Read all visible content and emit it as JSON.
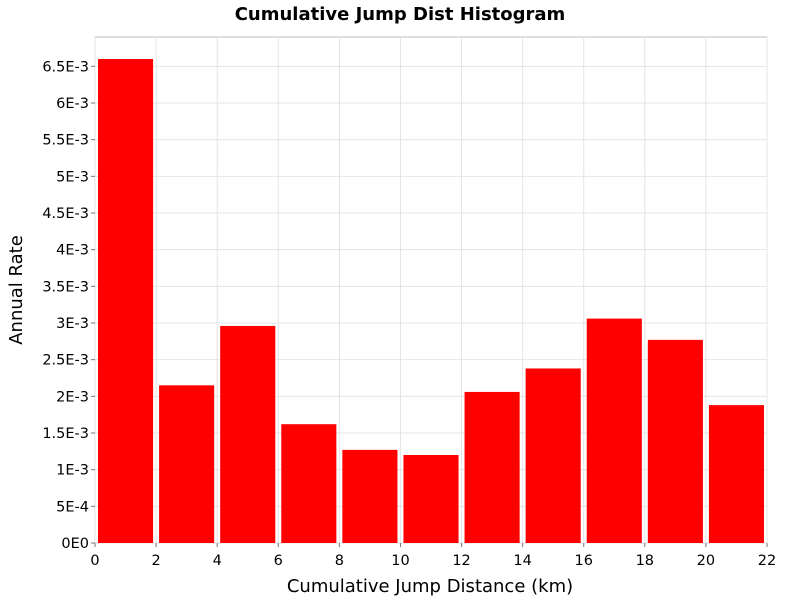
{
  "colors": {
    "bar": "#ff0000",
    "grid": "#e4e4e4",
    "background": "#ffffff"
  },
  "chart_data": {
    "type": "bar",
    "title": "Cumulative Jump Dist Histogram",
    "xlabel": "Cumulative Jump Distance (km)",
    "ylabel": "Annual Rate",
    "xlim": [
      0,
      22
    ],
    "ylim": [
      0,
      0.0069
    ],
    "grid": true,
    "bin_width": 2,
    "bins": [
      {
        "x_start": 0,
        "x_end": 2,
        "value": 0.0066
      },
      {
        "x_start": 2,
        "x_end": 4,
        "value": 0.00215
      },
      {
        "x_start": 4,
        "x_end": 6,
        "value": 0.00296
      },
      {
        "x_start": 6,
        "x_end": 8,
        "value": 0.00162
      },
      {
        "x_start": 8,
        "x_end": 10,
        "value": 0.00127
      },
      {
        "x_start": 10,
        "x_end": 12,
        "value": 0.0012
      },
      {
        "x_start": 12,
        "x_end": 14,
        "value": 0.00206
      },
      {
        "x_start": 14,
        "x_end": 16,
        "value": 0.00238
      },
      {
        "x_start": 16,
        "x_end": 18,
        "value": 0.00306
      },
      {
        "x_start": 18,
        "x_end": 20,
        "value": 0.00277
      },
      {
        "x_start": 20,
        "x_end": 22,
        "value": 0.00188
      }
    ],
    "x_ticks": [
      {
        "value": 0,
        "label": "0"
      },
      {
        "value": 2,
        "label": "2"
      },
      {
        "value": 4,
        "label": "4"
      },
      {
        "value": 6,
        "label": "6"
      },
      {
        "value": 8,
        "label": "8"
      },
      {
        "value": 10,
        "label": "10"
      },
      {
        "value": 12,
        "label": "12"
      },
      {
        "value": 14,
        "label": "14"
      },
      {
        "value": 16,
        "label": "16"
      },
      {
        "value": 18,
        "label": "18"
      },
      {
        "value": 20,
        "label": "20"
      },
      {
        "value": 22,
        "label": "22"
      }
    ],
    "y_ticks": [
      {
        "value": 0,
        "label": "0E0"
      },
      {
        "value": 0.0005,
        "label": "5E-4"
      },
      {
        "value": 0.001,
        "label": "1E-3"
      },
      {
        "value": 0.0015,
        "label": "1.5E-3"
      },
      {
        "value": 0.002,
        "label": "2E-3"
      },
      {
        "value": 0.0025,
        "label": "2.5E-3"
      },
      {
        "value": 0.003,
        "label": "3E-3"
      },
      {
        "value": 0.0035,
        "label": "3.5E-3"
      },
      {
        "value": 0.004,
        "label": "4E-3"
      },
      {
        "value": 0.0045,
        "label": "4.5E-3"
      },
      {
        "value": 0.005,
        "label": "5E-3"
      },
      {
        "value": 0.0055,
        "label": "5.5E-3"
      },
      {
        "value": 0.006,
        "label": "6E-3"
      },
      {
        "value": 0.0065,
        "label": "6.5E-3"
      }
    ]
  }
}
